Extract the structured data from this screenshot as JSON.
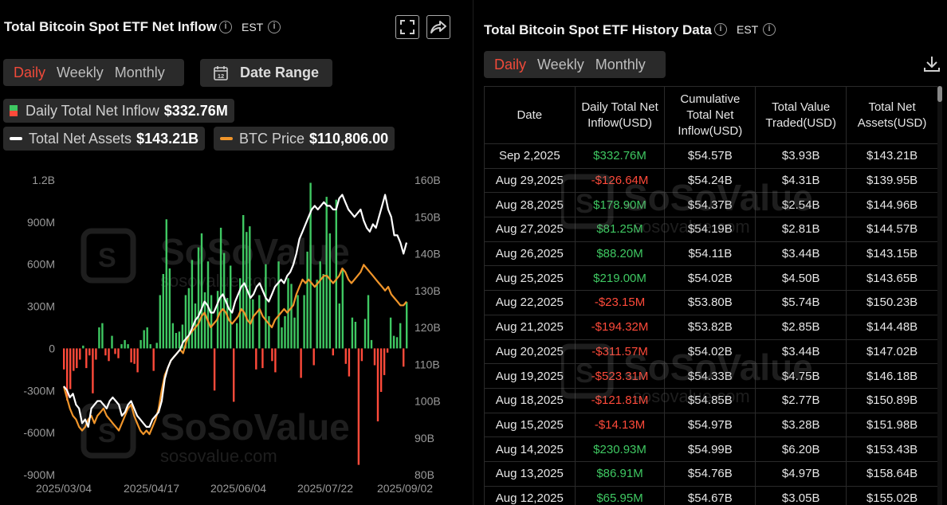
{
  "left": {
    "title": "Total Bitcoin Spot ETF Net Inflow",
    "tz": "EST",
    "tabs": [
      "Daily",
      "Weekly",
      "Monthly"
    ],
    "active_tab": "Daily",
    "date_range_label": "Date Range",
    "legend": {
      "inflow_label": "Daily Total Net Inflow",
      "inflow_value": "$332.76M",
      "assets_label": "Total Net Assets",
      "assets_value": "$143.21B",
      "btc_label": "BTC Price",
      "btc_value": "$110,806.00"
    }
  },
  "right": {
    "title": "Total Bitcoin Spot ETF History Data",
    "tz": "EST",
    "tabs": [
      "Daily",
      "Weekly",
      "Monthly"
    ],
    "active_tab": "Daily",
    "headers": [
      "Date",
      "Daily Total Net Inflow(USD)",
      "Cumulative Total Net Inflow(USD)",
      "Total Value Traded(USD)",
      "Total Net Assets(USD)"
    ],
    "rows": [
      [
        "Sep 2,2025",
        "$332.76M",
        "$54.57B",
        "$3.93B",
        "$143.21B"
      ],
      [
        "Aug 29,2025",
        "-$126.64M",
        "$54.24B",
        "$4.31B",
        "$139.95B"
      ],
      [
        "Aug 28,2025",
        "$178.90M",
        "$54.37B",
        "$2.54B",
        "$144.96B"
      ],
      [
        "Aug 27,2025",
        "$81.25M",
        "$54.19B",
        "$2.81B",
        "$144.57B"
      ],
      [
        "Aug 26,2025",
        "$88.20M",
        "$54.11B",
        "$3.44B",
        "$143.15B"
      ],
      [
        "Aug 25,2025",
        "$219.00M",
        "$54.02B",
        "$4.50B",
        "$143.65B"
      ],
      [
        "Aug 22,2025",
        "-$23.15M",
        "$53.80B",
        "$5.74B",
        "$150.23B"
      ],
      [
        "Aug 21,2025",
        "-$194.32M",
        "$53.82B",
        "$2.85B",
        "$144.48B"
      ],
      [
        "Aug 20,2025",
        "-$311.57M",
        "$54.02B",
        "$3.44B",
        "$147.02B"
      ],
      [
        "Aug 19,2025",
        "-$523.31M",
        "$54.33B",
        "$4.75B",
        "$146.18B"
      ],
      [
        "Aug 18,2025",
        "-$121.81M",
        "$54.85B",
        "$2.77B",
        "$150.89B"
      ],
      [
        "Aug 15,2025",
        "-$14.13M",
        "$54.97B",
        "$3.28B",
        "$151.98B"
      ],
      [
        "Aug 14,2025",
        "$230.93M",
        "$54.99B",
        "$6.20B",
        "$153.43B"
      ],
      [
        "Aug 13,2025",
        "$86.91M",
        "$54.76B",
        "$4.97B",
        "$158.64B"
      ],
      [
        "Aug 12,2025",
        "$65.95M",
        "$54.67B",
        "$3.05B",
        "$155.02B"
      ]
    ]
  },
  "watermark": {
    "brand": "SoSoValue",
    "url": "sosovalue.com"
  },
  "colors": {
    "positive": "#3fc862",
    "negative": "#ff4a3a",
    "btc": "#f0952a",
    "assets": "#ffffff",
    "active": "#f04a3a"
  },
  "chart_data": {
    "type": "bar",
    "x_ticks": [
      "2025/03/04",
      "2025/04/17",
      "2025/06/04",
      "2025/07/22",
      "2025/09/02"
    ],
    "y_left_ticks": [
      "1.2B",
      "900M",
      "600M",
      "300M",
      "0",
      "-300M",
      "-600M",
      "-900M"
    ],
    "y_left_range": [
      -900,
      1200
    ],
    "y_right_ticks": [
      "160B",
      "150B",
      "140B",
      "130B",
      "120B",
      "110B",
      "100B",
      "90B",
      "80B"
    ],
    "y_right_range": [
      80,
      160
    ],
    "inflow_millions": [
      -150,
      -370,
      -290,
      -160,
      -140,
      -80,
      20,
      -140,
      -50,
      -320,
      -80,
      150,
      180,
      -50,
      -90,
      90,
      -40,
      -70,
      30,
      60,
      30,
      -100,
      -110,
      -170,
      60,
      130,
      150,
      30,
      -160,
      40,
      380,
      530,
      920,
      570,
      180,
      110,
      120,
      170,
      380,
      430,
      630,
      320,
      720,
      820,
      400,
      620,
      380,
      -300,
      410,
      860,
      680,
      360,
      590,
      -380,
      180,
      500,
      950,
      830,
      870,
      350,
      -150,
      380,
      -140,
      600,
      230,
      -90,
      -170,
      620,
      150,
      230,
      500,
      460,
      220,
      380,
      -210,
      380,
      690,
      1180,
      -120,
      490,
      620,
      530,
      1080,
      820,
      -50,
      1060,
      320,
      560,
      -110,
      -200,
      220,
      190,
      -830,
      -90,
      210,
      380,
      60,
      -120,
      -520,
      -310,
      -190,
      -30,
      220,
      90,
      80,
      180,
      -130,
      330
    ],
    "series": [
      {
        "name": "Total Net Assets",
        "values_billion": [
          104,
          103,
          101,
          102,
          99,
          98,
          94,
          95,
          93,
          98,
          99,
          100,
          100,
          99,
          98,
          100,
          101,
          100,
          99,
          96,
          97,
          99,
          100,
          98,
          96,
          95,
          94,
          93,
          93,
          95,
          96,
          97,
          100,
          106,
          109,
          111,
          112,
          113,
          114,
          116,
          117,
          118,
          120,
          122,
          123,
          125,
          127,
          126,
          124,
          124,
          126,
          128,
          129,
          127,
          125,
          124,
          127,
          129,
          131,
          132,
          130,
          128,
          129,
          131,
          132,
          130,
          128,
          127,
          129,
          131,
          132,
          133,
          132,
          134,
          135,
          137,
          140,
          144,
          146,
          148,
          150,
          152,
          153,
          152,
          153,
          154,
          153,
          153,
          152,
          152,
          155,
          156,
          154,
          152,
          151,
          150,
          151,
          152,
          149,
          147,
          146,
          148,
          147,
          150,
          153,
          156,
          152,
          150,
          145,
          145,
          143,
          140,
          143
        ]
      },
      {
        "name": "BTC Price",
        "values_billion": [
          104,
          101,
          98,
          96,
          95,
          93,
          92,
          93,
          95,
          96,
          94,
          96,
          97,
          98,
          96,
          95,
          94,
          93,
          92,
          94,
          96,
          98,
          99,
          96,
          94,
          92,
          91,
          92,
          91,
          93,
          95,
          98,
          103,
          107,
          109,
          111,
          112,
          113,
          114,
          113,
          116,
          118,
          119,
          120,
          121,
          123,
          124,
          122,
          120,
          121,
          122,
          124,
          125,
          124,
          122,
          121,
          122,
          123,
          125,
          124,
          122,
          121,
          123,
          124,
          125,
          123,
          122,
          121,
          120,
          122,
          123,
          124,
          125,
          124,
          125,
          126,
          129,
          131,
          133,
          132,
          133,
          132,
          131,
          132,
          133,
          134,
          134,
          133,
          132,
          133,
          134,
          136,
          135,
          133,
          132,
          133,
          134,
          135,
          137,
          136,
          135,
          134,
          133,
          132,
          131,
          130,
          131,
          129,
          128,
          127,
          126,
          126,
          127
        ]
      }
    ]
  }
}
